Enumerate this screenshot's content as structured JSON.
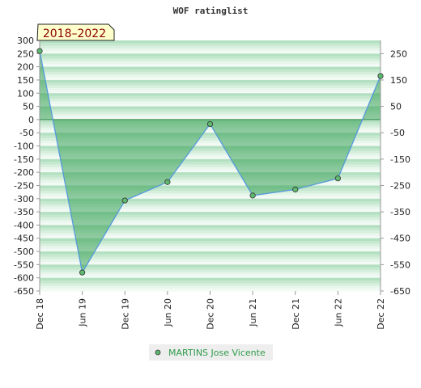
{
  "chart_data": {
    "type": "area",
    "title": "WOF ratinglist",
    "period_label": "2018–2022",
    "categories": [
      "Dec 18",
      "Jun 19",
      "Dec 19",
      "Jun 20",
      "Dec 20",
      "Jun 21",
      "Dec 21",
      "Jun 22",
      "Dec 22"
    ],
    "series": [
      {
        "name": "MARTINS Jose Vicente",
        "values": [
          260,
          -580,
          -307,
          -237,
          -17,
          -288,
          -265,
          -223,
          165
        ]
      }
    ],
    "y_left": {
      "min": -650,
      "max": 300,
      "ticks": [
        300,
        250,
        200,
        150,
        100,
        50,
        0,
        -50,
        -100,
        -150,
        -200,
        -250,
        -300,
        -350,
        -400,
        -450,
        -500,
        -550,
        -600,
        -650
      ]
    },
    "y_right": {
      "ticks": [
        250,
        150,
        50,
        -50,
        -150,
        -250,
        -350,
        -450,
        -550,
        -650
      ]
    },
    "legend_position": "bottom-center",
    "colors": {
      "line": "#5599dd",
      "fill": "#3aa35a",
      "marker": "#5fb86f",
      "band_dark": "#b6e2c4",
      "band_light": "#eef8f1",
      "badge_bg": "#ffffcc"
    }
  }
}
